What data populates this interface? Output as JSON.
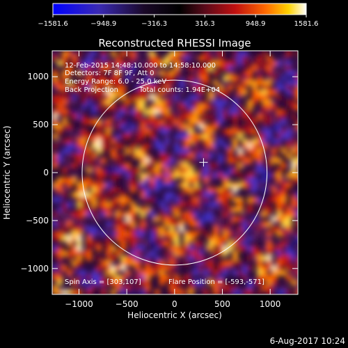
{
  "chart_data": {
    "type": "heatmap",
    "title": "Reconstructed RHESSI Image",
    "xlabel": "Heliocentric X (arcsec)",
    "ylabel": "Heliocentric Y (arcsec)",
    "xlim": [
      -1280,
      1290
    ],
    "ylim": [
      -1270,
      1270
    ],
    "xticks": [
      -1000,
      -500,
      0,
      500,
      1000
    ],
    "yticks": [
      -1000,
      -500,
      0,
      500,
      1000
    ],
    "colorbar": {
      "range": [
        -1581.6,
        1581.6
      ],
      "tick_labels": [
        "−1581.6",
        "−948.9",
        "−316.3",
        "316.3",
        "948.9",
        "1581.6"
      ],
      "colors": [
        "#0000ff",
        "#3a2ab4",
        "#1a0828",
        "#000000",
        "#5a0a1a",
        "#c01010",
        "#ff6a00",
        "#ffd200",
        "#ffffff"
      ]
    },
    "annotations": {
      "time_range": "12-Feb-2015 14:48:10.000 to 14:58:10.000",
      "detectors": "Detectors: 7F 8F 9F, Att 0",
      "energy": "Energy Range: 6.0 - 25.0 keV",
      "method": "Back Projection",
      "counts": "Total counts: 1.94E+04",
      "spin_axis": "Spin Axis = [303,107]",
      "flare_position": "Flare Position = [-593,-571]"
    },
    "solar_disk": {
      "center": [
        0,
        0
      ],
      "radius": 967
    },
    "flare_marker": [
      303,
      107
    ]
  },
  "footer": {
    "timestamp": "6-Aug-2017 10:24"
  }
}
